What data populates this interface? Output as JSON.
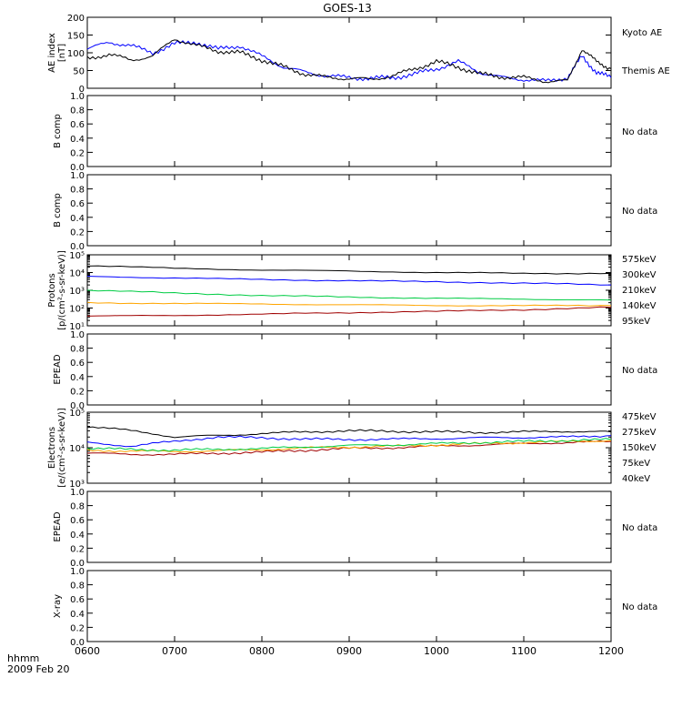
{
  "title": "GOES-13",
  "time_axis": {
    "label_line1": "hhmm",
    "label_line2": "2009 Feb 20",
    "tick_labels": [
      "0600",
      "0700",
      "0800",
      "0900",
      "1000",
      "1100",
      "1200"
    ],
    "range": [
      "0600",
      "1200"
    ]
  },
  "no_data_text": "No data",
  "chart_data": [
    {
      "id": "ae",
      "type": "line",
      "ylabel": "AE index\n[nT]",
      "ylim": [
        0,
        200
      ],
      "yscale": "linear",
      "y_ticks": [
        "0",
        "50",
        "100",
        "150",
        "200"
      ],
      "x": [
        "0600",
        "0615",
        "0630",
        "0645",
        "0700",
        "0715",
        "0730",
        "0745",
        "0800",
        "0815",
        "0830",
        "0845",
        "0900",
        "0915",
        "0930",
        "0945",
        "1000",
        "1015",
        "1030",
        "1045",
        "1100",
        "1115",
        "1130",
        "1140",
        "1150",
        "1200"
      ],
      "series": [
        {
          "name": "Kyoto AE",
          "color": "#0000ff",
          "values": [
            110,
            130,
            120,
            100,
            125,
            130,
            110,
            120,
            90,
            60,
            45,
            35,
            30,
            28,
            30,
            40,
            55,
            75,
            45,
            30,
            25,
            20,
            30,
            90,
            45,
            30
          ]
        },
        {
          "name": "Themis AE",
          "color": "#000000",
          "values": [
            85,
            95,
            80,
            90,
            140,
            120,
            105,
            100,
            80,
            60,
            40,
            30,
            28,
            25,
            35,
            55,
            75,
            60,
            40,
            32,
            30,
            20,
            20,
            110,
            75,
            55
          ]
        }
      ]
    },
    {
      "id": "b1",
      "type": "line",
      "ylabel": "B comp",
      "ylim": [
        0,
        1.0
      ],
      "yscale": "linear",
      "y_ticks": [
        "0.0",
        "0.2",
        "0.4",
        "0.6",
        "0.8",
        "1.0"
      ],
      "status": "No data",
      "series": []
    },
    {
      "id": "b2",
      "type": "line",
      "ylabel": "B comp",
      "ylim": [
        0,
        1.0
      ],
      "yscale": "linear",
      "y_ticks": [
        "0.0",
        "0.2",
        "0.4",
        "0.6",
        "0.8",
        "1.0"
      ],
      "status": "No data",
      "series": []
    },
    {
      "id": "protons",
      "type": "line",
      "ylabel": "Protons\n[p/(cm²-s-sr-keV)]",
      "ylim": [
        10,
        100000
      ],
      "yscale": "log",
      "y_ticks": [
        "10¹",
        "10²",
        "10³",
        "10⁴",
        "10⁵"
      ],
      "x": [
        "0600",
        "0700",
        "0800",
        "0900",
        "1000",
        "1100",
        "1200"
      ],
      "series": [
        {
          "name": "575keV",
          "color": "#a00000",
          "values": [
            35,
            38,
            45,
            55,
            65,
            80,
            110
          ]
        },
        {
          "name": "300keV",
          "color": "#ffa500",
          "values": [
            200,
            180,
            170,
            150,
            140,
            135,
            140
          ]
        },
        {
          "name": "210keV",
          "color": "#00cc44",
          "values": [
            1000,
            700,
            500,
            420,
            350,
            320,
            280
          ]
        },
        {
          "name": "140keV",
          "color": "#0000ff",
          "values": [
            6000,
            5000,
            4000,
            3500,
            3000,
            2500,
            2000
          ]
        },
        {
          "name": "95keV",
          "color": "#000000",
          "values": [
            25000,
            17000,
            14000,
            12000,
            10000,
            9000,
            9000
          ]
        }
      ]
    },
    {
      "id": "epead1",
      "type": "line",
      "ylabel": "EPEAD",
      "ylim": [
        0,
        1.0
      ],
      "yscale": "linear",
      "y_ticks": [
        "0.0",
        "0.2",
        "0.4",
        "0.6",
        "0.8",
        "1.0"
      ],
      "status": "No data",
      "series": []
    },
    {
      "id": "electrons",
      "type": "line",
      "ylabel": "Electrons\n[e/(cm²-s-sr-keV)]",
      "ylim": [
        1000,
        100000
      ],
      "yscale": "log",
      "y_ticks": [
        "10³",
        "10⁴",
        "10⁵"
      ],
      "x": [
        "0600",
        "0630",
        "0700",
        "0730",
        "0800",
        "0830",
        "0900",
        "0930",
        "1000",
        "1030",
        "1100",
        "1130",
        "1200"
      ],
      "series": [
        {
          "name": "475keV",
          "color": "#a00000",
          "values": [
            7000,
            6500,
            6500,
            7000,
            7500,
            8500,
            9500,
            10000,
            11000,
            12000,
            13000,
            14000,
            15000
          ]
        },
        {
          "name": "275keV",
          "color": "#ffa500",
          "values": [
            8500,
            8000,
            7800,
            8200,
            8800,
            9800,
            10500,
            11000,
            12000,
            13000,
            14000,
            15000,
            16000
          ]
        },
        {
          "name": "150keV",
          "color": "#00cc44",
          "values": [
            9500,
            9000,
            8500,
            9000,
            9500,
            10500,
            11500,
            12000,
            13000,
            14000,
            15000,
            16000,
            17000
          ]
        },
        {
          "name": "75keV",
          "color": "#0000ff",
          "values": [
            14000,
            11000,
            15000,
            20000,
            19000,
            17500,
            17000,
            17500,
            18000,
            19000,
            19500,
            20000,
            22000
          ]
        },
        {
          "name": "40keV",
          "color": "#000000",
          "values": [
            40000,
            30000,
            20000,
            22000,
            25000,
            28000,
            30000,
            29000,
            28000,
            27000,
            28000,
            29000,
            28000
          ]
        }
      ]
    },
    {
      "id": "epead2",
      "type": "line",
      "ylabel": "EPEAD",
      "ylim": [
        0,
        1.0
      ],
      "yscale": "linear",
      "y_ticks": [
        "0.0",
        "0.2",
        "0.4",
        "0.6",
        "0.8",
        "1.0"
      ],
      "status": "No data",
      "series": []
    },
    {
      "id": "xray",
      "type": "line",
      "ylabel": "X-ray",
      "ylim": [
        0,
        1.0
      ],
      "yscale": "linear",
      "y_ticks": [
        "0.0",
        "0.2",
        "0.4",
        "0.6",
        "0.8",
        "1.0"
      ],
      "status": "No data",
      "series": []
    }
  ]
}
